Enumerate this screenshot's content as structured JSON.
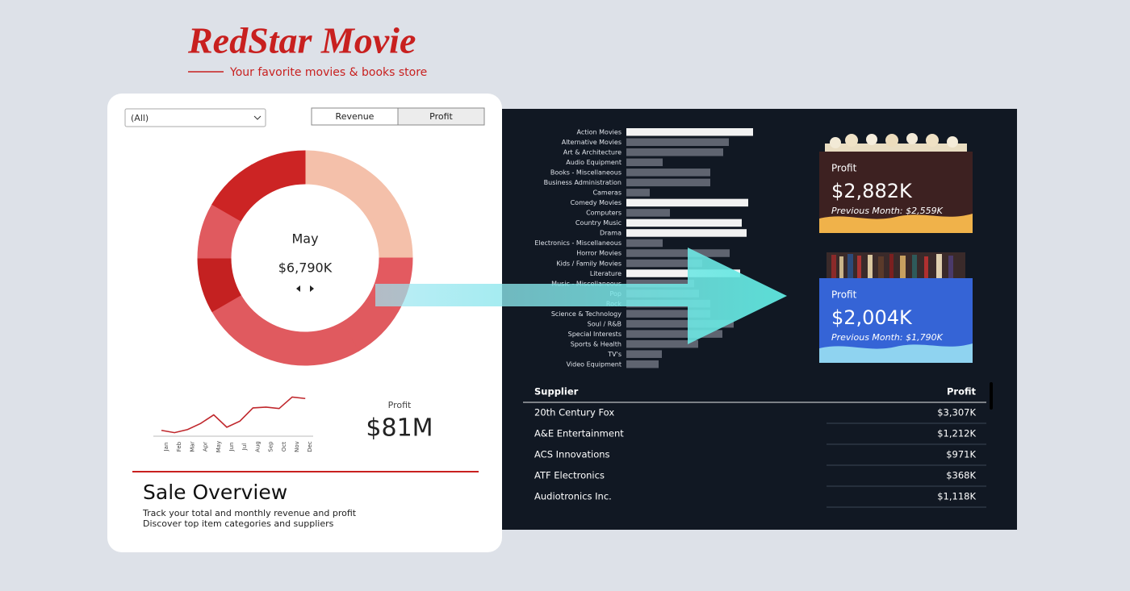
{
  "brand": {
    "name": "RedStar Movie",
    "tagline": "Your favorite movies & books store"
  },
  "filter": "(All)",
  "toggle": {
    "options": [
      "Revenue",
      "Profit"
    ],
    "active": 1
  },
  "donut": {
    "month": "May",
    "value_label": "$6,790K",
    "colors": [
      "#f4c0aa",
      "#f4c0aa",
      "#f4c0aa",
      "#e35a60",
      "#e05a5f",
      "#e05a5f",
      "#e05a5f",
      "#e05a5f",
      "#c42121",
      "#e05a5f",
      "#cc2424",
      "#cc2424"
    ]
  },
  "sparkline": {
    "type": "line",
    "categories": [
      "Jan",
      "Feb",
      "Mar",
      "Apr",
      "May",
      "Jun",
      "Jul",
      "Aug",
      "Sep",
      "Oct",
      "Nov",
      "Dec"
    ],
    "values": [
      6420,
      6365,
      6440,
      6585,
      6790,
      6495,
      6640,
      6955,
      6975,
      6940,
      7215,
      7180
    ],
    "ylim": [
      6300,
      7300
    ],
    "color": "#c0282d"
  },
  "total": {
    "label": "Profit",
    "value": "$81M"
  },
  "overview": {
    "title": "Sale Overview",
    "lines": [
      "Track your total and monthly revenue and profit",
      "Discover top item categories and suppliers"
    ]
  },
  "category_chart": {
    "type": "bar",
    "orientation": "horizontal",
    "categories": [
      "Action Movies",
      "Alternative Movies",
      "Art & Architecture",
      "Audio Equipment",
      "Books - Miscellaneous",
      "Business Administration",
      "Cameras",
      "Comedy Movies",
      "Computers",
      "Country Music",
      "Drama",
      "Electronics - Miscellaneous",
      "Horror Movies",
      "Kids / Family Movies",
      "Literature",
      "Music - Miscellaneous",
      "Pop",
      "Rock",
      "Science & Technology",
      "Soul / R&B",
      "Special Interests",
      "Sports & Health",
      "TV's",
      "Video Equipment"
    ],
    "values": [
      157,
      127,
      120,
      45,
      104,
      104,
      29,
      151,
      54,
      143,
      149,
      45,
      128,
      94,
      141,
      84,
      90,
      104,
      104,
      133,
      119,
      89,
      44,
      40
    ],
    "xlim": [
      0,
      160
    ],
    "color": "#5f6470",
    "highlight_color": "#f2f2f2",
    "highlighted": [
      0,
      7,
      9,
      10,
      14
    ]
  },
  "cards": [
    {
      "label": "Profit",
      "value": "$2,882K",
      "previous": "Previous Month: $2,559K",
      "color": "#3d2121",
      "wave_color": "#f0b24a"
    },
    {
      "label": "Profit",
      "value": "$2,004K",
      "previous": "Previous Month: $1,790K",
      "color": "#3564d6",
      "wave_color": "#8fd3f0"
    }
  ],
  "table": {
    "header": [
      "Supplier",
      "Profit"
    ],
    "rows": [
      [
        "20th Century Fox",
        "$3,307K"
      ],
      [
        "A&E Entertainment",
        "$1,212K"
      ],
      [
        "ACS Innovations",
        "$971K"
      ],
      [
        "ATF Electronics",
        "$368K"
      ],
      [
        "Audiotronics Inc.",
        "$1,118K"
      ]
    ]
  }
}
